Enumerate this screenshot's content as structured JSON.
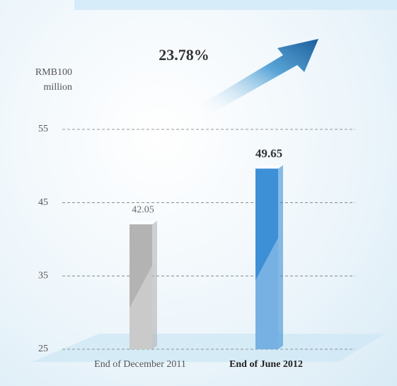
{
  "chart_data": {
    "type": "bar",
    "y_label": "RMB100 million",
    "annotation": "23.78%",
    "categories": [
      "End of December 2011",
      "End of June 2012"
    ],
    "values": [
      42.05,
      49.65
    ],
    "colors": [
      "#b3b3b3",
      "#3d8fd6"
    ],
    "ylim": [
      25,
      55
    ],
    "yticks": [
      25,
      35,
      45,
      55
    ],
    "grid": true
  }
}
